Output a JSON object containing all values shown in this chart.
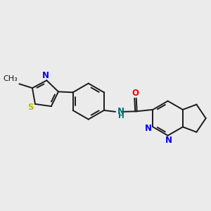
{
  "background_color": "#ebebeb",
  "bond_color": "#1a1a1a",
  "N_color": "#0000ee",
  "O_color": "#ee0000",
  "S_color": "#bbbb00",
  "NH_color": "#007070",
  "figsize": [
    3.0,
    3.0
  ],
  "dpi": 100,
  "lw": 1.4,
  "fs": 8.5,
  "xlim": [
    -3.0,
    3.0
  ],
  "ylim": [
    -2.2,
    2.2
  ]
}
